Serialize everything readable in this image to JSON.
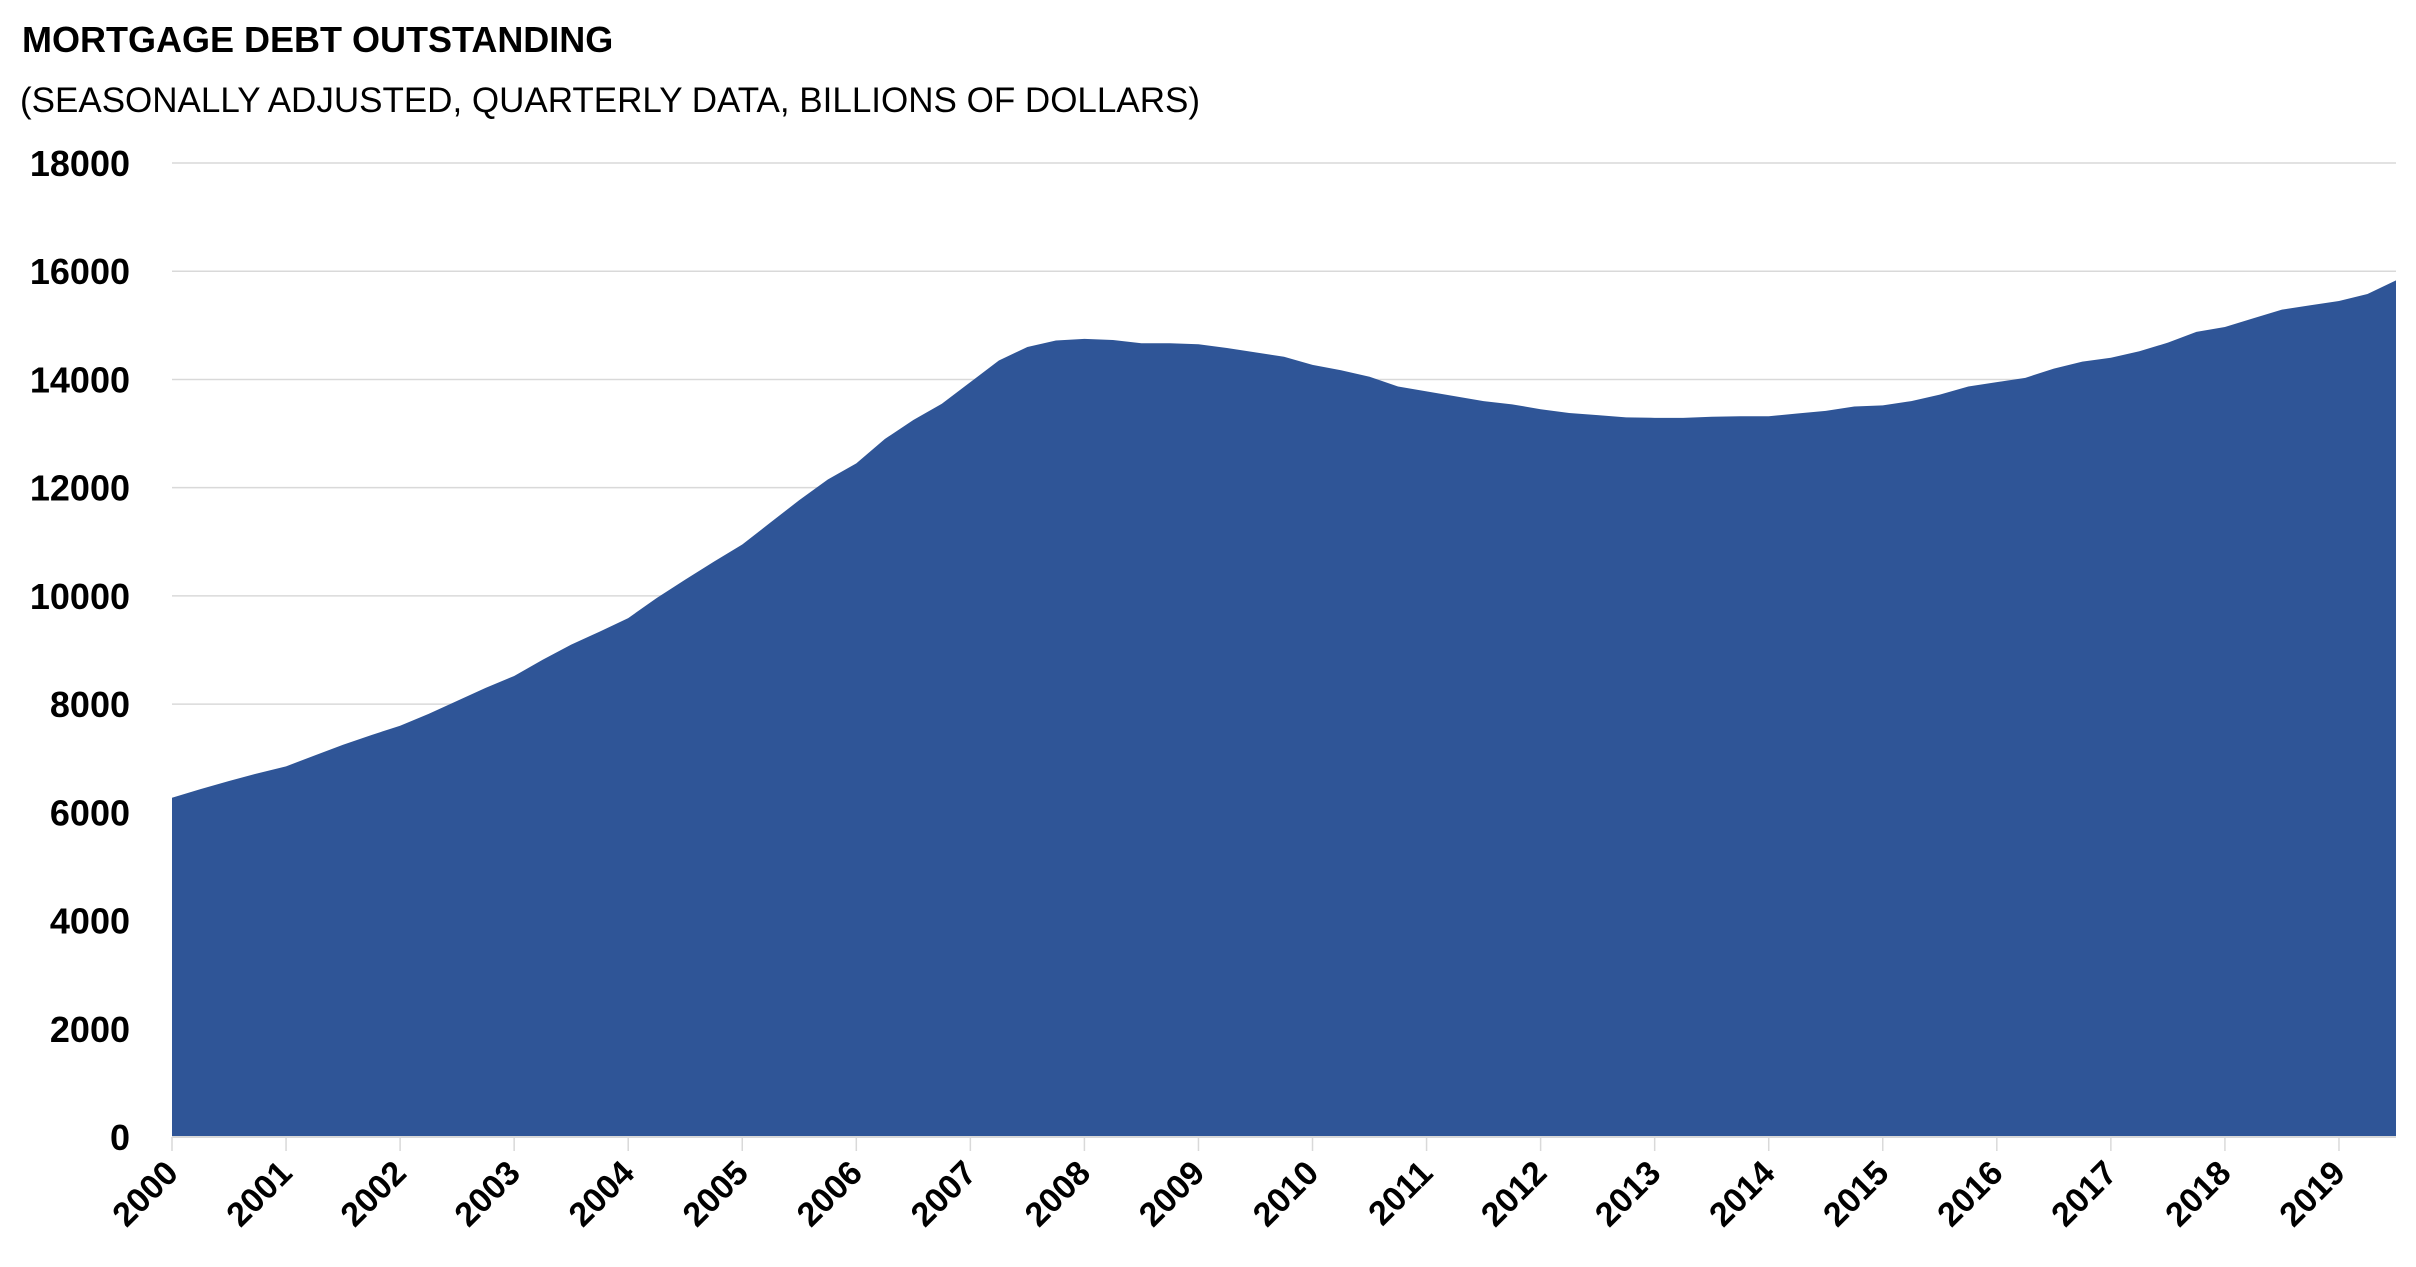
{
  "chart_data": {
    "type": "area",
    "title": "MORTGAGE DEBT OUTSTANDING",
    "subtitle": "(SEASONALLY ADJUSTED, QUARTERLY DATA, BILLIONS OF DOLLARS)",
    "xlabel": "",
    "ylabel": "",
    "ylim": [
      0,
      18000
    ],
    "yticks": [
      "0",
      "2000",
      "4000",
      "6000",
      "8000",
      "10000",
      "12000",
      "14000",
      "16000",
      "18000"
    ],
    "xticks": [
      "2000",
      "2001",
      "2002",
      "2003",
      "2004",
      "2005",
      "2006",
      "2007",
      "2008",
      "2009",
      "2010",
      "2011",
      "2012",
      "2013",
      "2014",
      "2015",
      "2016",
      "2017",
      "2018",
      "2019"
    ],
    "grid": true,
    "legend": "none",
    "frequency": "quarterly",
    "start": "2000Q1",
    "series": [
      {
        "name": "Mortgage debt outstanding",
        "color": "#2F5597",
        "values": [
          6270,
          6430,
          6580,
          6720,
          6850,
          7050,
          7250,
          7430,
          7600,
          7820,
          8060,
          8300,
          8520,
          8820,
          9100,
          9340,
          9590,
          9960,
          10300,
          10630,
          10950,
          11360,
          11770,
          12150,
          12450,
          12900,
          13250,
          13550,
          13950,
          14350,
          14600,
          14720,
          14750,
          14730,
          14670,
          14670,
          14650,
          14580,
          14500,
          14420,
          14270,
          14170,
          14050,
          13870,
          13780,
          13690,
          13600,
          13540,
          13450,
          13380,
          13340,
          13300,
          13290,
          13290,
          13310,
          13320,
          13320,
          13370,
          13420,
          13500,
          13520,
          13600,
          13720,
          13870,
          13950,
          14030,
          14200,
          14330,
          14400,
          14520,
          14680,
          14880,
          14970,
          15130,
          15290,
          15370,
          15450,
          15580,
          15830
        ]
      }
    ]
  }
}
